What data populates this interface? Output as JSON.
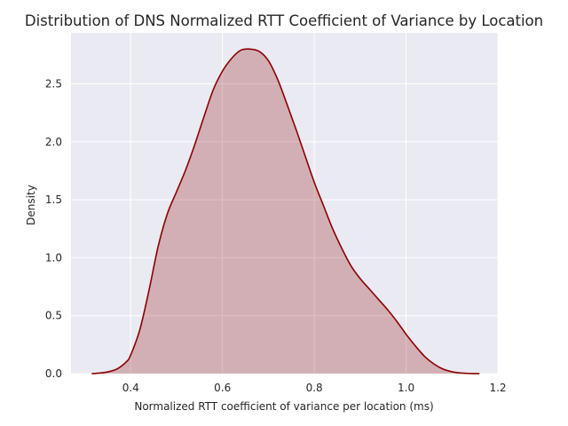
{
  "chart_data": {
    "type": "area",
    "title": "Distribution of DNS Normalized RTT Coefficient of Variance by Location",
    "xlabel": "Normalized RTT coefficient of variance per location (ms)",
    "ylabel": "Density",
    "xlim": [
      0.27,
      1.2
    ],
    "ylim": [
      0,
      2.94
    ],
    "xticks": [
      0.4,
      0.6,
      0.8,
      1.0,
      1.2
    ],
    "xtick_labels": [
      "0.4",
      "0.6",
      "0.8",
      "1.0",
      "1.2"
    ],
    "yticks": [
      0.0,
      0.5,
      1.0,
      1.5,
      2.0,
      2.5
    ],
    "ytick_labels": [
      "0.0",
      "0.5",
      "1.0",
      "1.5",
      "2.0",
      "2.5"
    ],
    "grid": true,
    "colors": {
      "background": "#eaeaf2",
      "grid": "#ffffff",
      "line": "#8b0000",
      "fill": "#8b0000"
    },
    "series": [
      {
        "x": [
          0.315,
          0.33,
          0.35,
          0.37,
          0.39,
          0.4,
          0.42,
          0.44,
          0.46,
          0.48,
          0.5,
          0.52,
          0.54,
          0.56,
          0.58,
          0.6,
          0.62,
          0.64,
          0.66,
          0.68,
          0.7,
          0.72,
          0.74,
          0.76,
          0.78,
          0.8,
          0.82,
          0.84,
          0.86,
          0.88,
          0.9,
          0.92,
          0.94,
          0.96,
          0.98,
          1.0,
          1.02,
          1.04,
          1.06,
          1.08,
          1.1,
          1.12,
          1.14,
          1.16
        ],
        "y": [
          0.0,
          0.004,
          0.015,
          0.04,
          0.1,
          0.16,
          0.38,
          0.72,
          1.1,
          1.38,
          1.57,
          1.76,
          1.98,
          2.22,
          2.45,
          2.61,
          2.72,
          2.79,
          2.8,
          2.78,
          2.7,
          2.54,
          2.33,
          2.11,
          1.88,
          1.65,
          1.45,
          1.25,
          1.08,
          0.93,
          0.82,
          0.73,
          0.64,
          0.55,
          0.45,
          0.34,
          0.24,
          0.15,
          0.085,
          0.04,
          0.016,
          0.005,
          0.0015,
          0.0
        ]
      }
    ]
  }
}
